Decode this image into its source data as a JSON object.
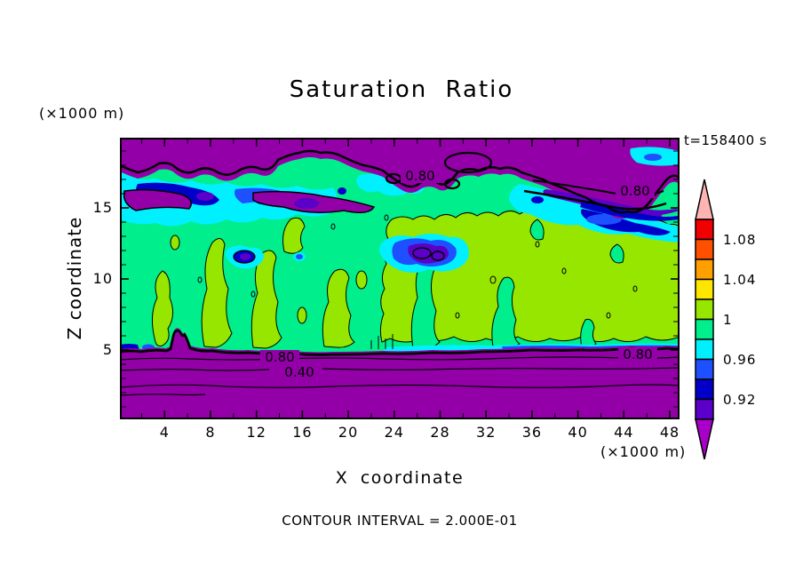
{
  "header": {
    "title": "Saturation Ratio",
    "timestamp": "t=158400 s"
  },
  "axes": {
    "z_label": "Z coordinate",
    "x_label": "X coordinate",
    "z_unit": "(×1000 m)",
    "x_unit": "(×1000 m)",
    "x_tick_labels": [
      "4",
      "8",
      "12",
      "16",
      "20",
      "24",
      "28",
      "32",
      "36",
      "40",
      "44",
      "48"
    ],
    "z_tick_labels": [
      "5",
      "10",
      "15"
    ]
  },
  "footer": {
    "contour_interval_text": "CONTOUR INTERVAL = 2.000E-01"
  },
  "contour_labels": {
    "top_mid": "0.80",
    "top_right": "0.80",
    "bottom_left": "0.80",
    "bottom_mid": "0.40",
    "bottom_right": "0.80"
  },
  "colorbar": {
    "labels": [
      "1.08",
      "1.04",
      "1",
      "0.96",
      "0.92"
    ],
    "colors": [
      "#F00000",
      "#FF5000",
      "#FFA000",
      "#FFE600",
      "#96E600",
      "#00EE8C",
      "#00F0FF",
      "#1E50FF",
      "#0000C8",
      "#5A00C8"
    ],
    "over_color": "#FFB4B4",
    "under_color": "#A800C8"
  },
  "palette": {
    "purple": "#9400A8",
    "darkviolet": "#5A00C8",
    "navy": "#0000C8",
    "blue": "#1E50FF",
    "cyan": "#00F0FF",
    "springgreen": "#00EE8C",
    "greenyellow": "#96E600",
    "yellow": "#FFE600",
    "orange": "#FFA000",
    "orangered": "#FF5000",
    "red": "#F00000",
    "over_pink": "#FFB4B4",
    "under_magenta": "#A800C8",
    "line": "#000000"
  },
  "chart_data": {
    "type": "contour",
    "title": "Saturation Ratio",
    "time_label": "t=158400 s",
    "xlabel": "X coordinate",
    "ylabel": "Z coordinate",
    "axis_units": "(×1000 m)",
    "xlim": [
      0,
      50
    ],
    "ylim": [
      0,
      20
    ],
    "x_ticks": [
      4,
      8,
      12,
      16,
      20,
      24,
      28,
      32,
      36,
      40,
      44,
      48
    ],
    "x_minor_step": 2,
    "y_ticks": [
      5,
      10,
      15
    ],
    "y_minor_step": 1,
    "contour_interval": 0.2,
    "contour_interval_label": "CONTOUR INTERVAL = 2.000E-01",
    "fill_levels": {
      "min": 0.9,
      "max": 1.1,
      "step": 0.02
    },
    "colorbar_tick_values": [
      1.08,
      1.04,
      1,
      0.96,
      0.92
    ],
    "labeled_contour_lines": [
      {
        "value": 0.8,
        "location": "upper purple band, center (x≈13.5, z≈14.5)"
      },
      {
        "value": 0.8,
        "location": "upper purple band, right (x≈43, z≈13.5)"
      },
      {
        "value": 0.8,
        "location": "lower purple band, left (x≈13.5, z≈4.3)"
      },
      {
        "value": 0.4,
        "location": "lower purple band, left (x≈15.5, z≈3.2)"
      },
      {
        "value": 0.8,
        "location": "lower purple band, right (x≈45, z≈4.5)"
      }
    ],
    "field_regions": [
      {
        "region": "z ≈ 17–20 (top band)",
        "saturation_ratio": "< 0.8 (deep purple); 0.80 contour line runs through it"
      },
      {
        "region": "z ≈ 15.5–17.5",
        "saturation_ratio": "0.90–0.98 patches (violet / navy / blue / cyan cloud band)"
      },
      {
        "region": "z ≈ 5–15.5 (main body)",
        "saturation_ratio": "0.98–1.02: spring-green (0.98–1.00) with green-yellow (1.00–1.02) patches; isolated 0.80–0.96 pockets near x≈21–26, z≈11–12"
      },
      {
        "region": "z ≈ 0–5 (bottom band)",
        "saturation_ratio": "drops from ≈0.9 at z≈5 to < 0.2 near ground; 0.80 / 0.60 / 0.40 / 0.20 lines roughly horizontal"
      }
    ]
  }
}
